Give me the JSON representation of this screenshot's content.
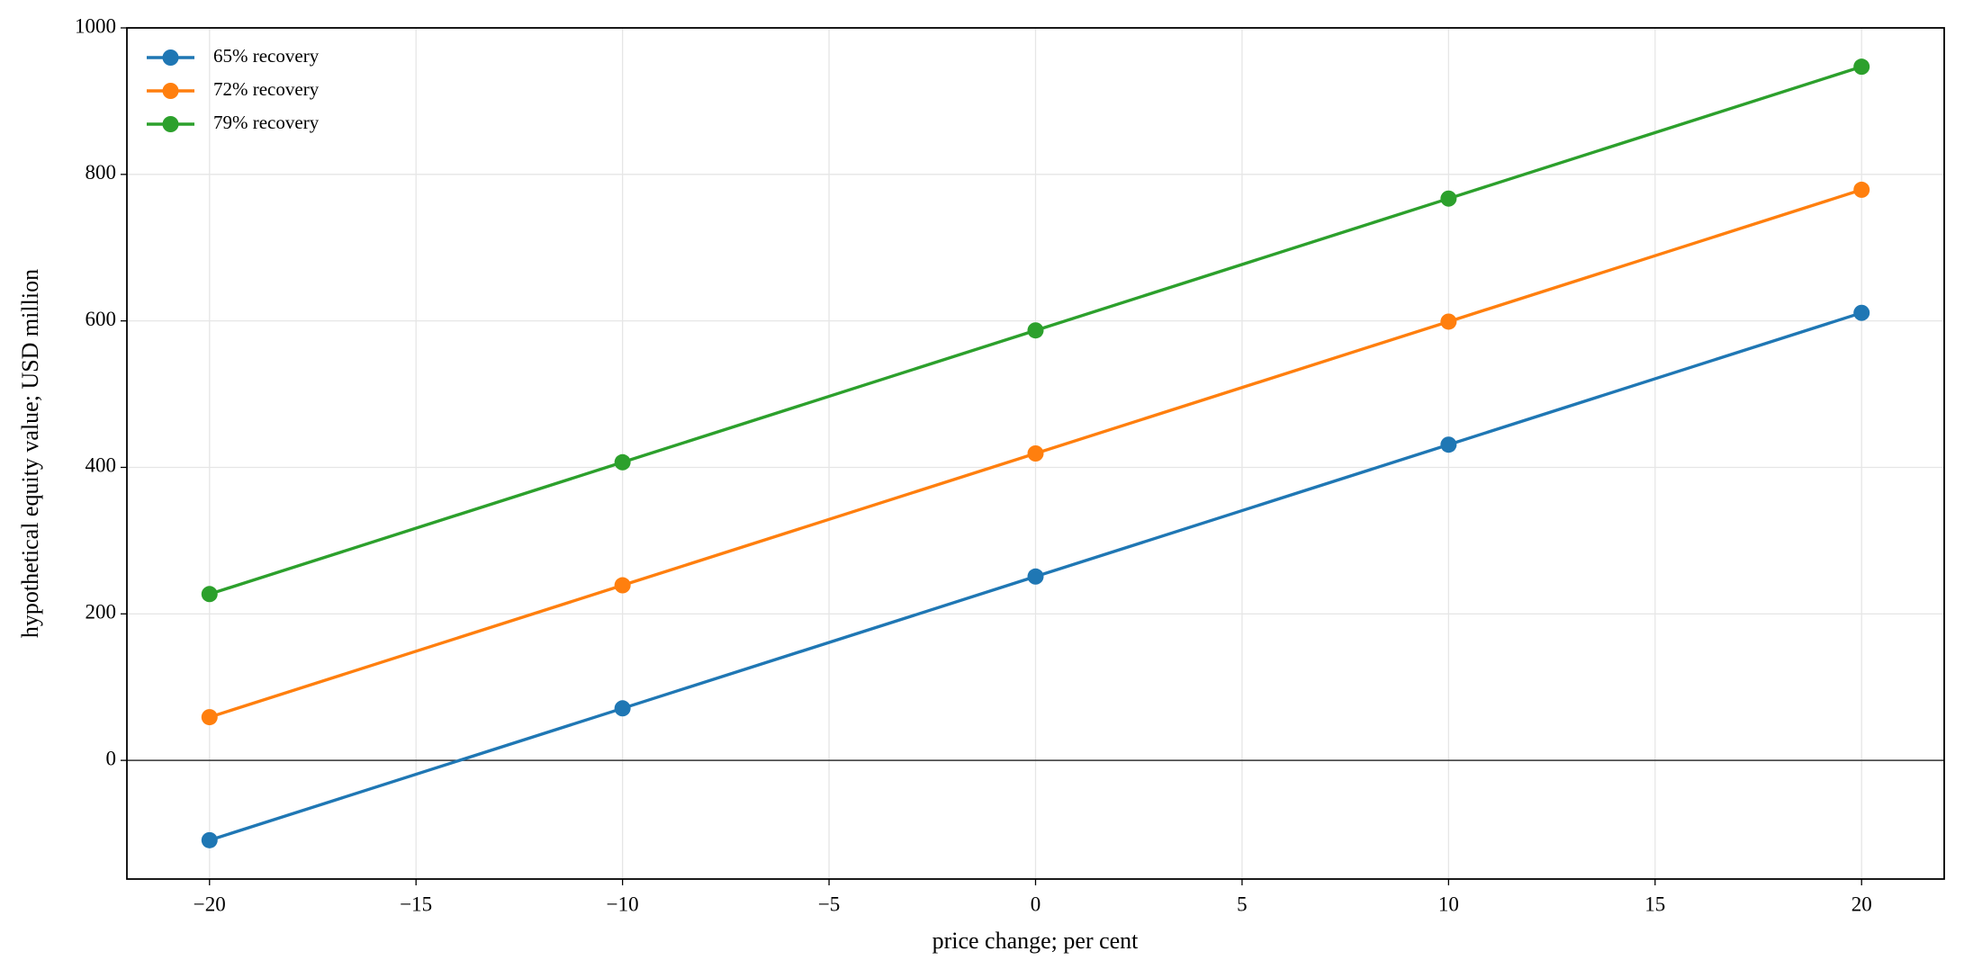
{
  "chart_data": {
    "type": "line",
    "xlabel": "price change; per cent",
    "ylabel": "hypothetical equity value; USD million",
    "x": [
      -20,
      -10,
      0,
      10,
      20
    ],
    "series": [
      {
        "name": "65% recovery",
        "color": "#1f77b4",
        "values": [
          -109,
          71,
          251,
          431,
          611
        ]
      },
      {
        "name": "72% recovery",
        "color": "#ff7f0e",
        "values": [
          59,
          239,
          419,
          599,
          779
        ]
      },
      {
        "name": "79% recovery",
        "color": "#2ca02c",
        "values": [
          227,
          407,
          587,
          767,
          947
        ]
      }
    ],
    "xlim": [
      -22,
      22
    ],
    "ylim": [
      -162,
      1000
    ],
    "xticks": [
      {
        "value": -20,
        "label": "−20"
      },
      {
        "value": -15,
        "label": "−15"
      },
      {
        "value": -10,
        "label": "−10"
      },
      {
        "value": -5,
        "label": "−5"
      },
      0,
      5,
      10,
      15,
      20
    ],
    "yticks": [
      0,
      200,
      400,
      600,
      800,
      1000
    ],
    "reference_line": 0,
    "grid": true,
    "legend": "upper-left"
  }
}
